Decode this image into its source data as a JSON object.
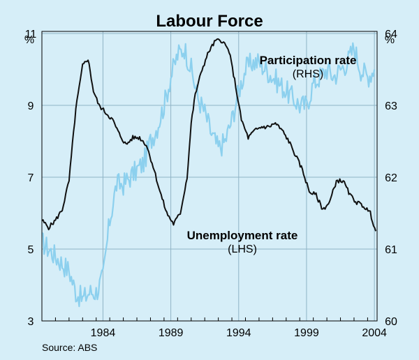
{
  "chart_data": {
    "type": "line",
    "title": "Labour Force",
    "left_axis": {
      "unit": "%",
      "ylim": [
        3,
        11
      ],
      "ticks": [
        "3",
        "5",
        "7",
        "9",
        "11"
      ]
    },
    "right_axis": {
      "unit": "%",
      "ylim": [
        60,
        64
      ],
      "ticks": [
        "60",
        "61",
        "62",
        "63",
        "64"
      ]
    },
    "x_axis": {
      "xlim": [
        1980.0,
        2004.7
      ],
      "ticks": [
        "1984",
        "1989",
        "1994",
        "1999",
        "2004"
      ]
    },
    "grid": true,
    "source": "Source: ABS",
    "colors": {
      "background": "#d6eef8",
      "unemployment": "#111111",
      "participation": "#8cd0ee",
      "grid": "#8fb4c6"
    },
    "series": [
      {
        "name": "Unemployment rate",
        "label_sub": "(LHS)",
        "axis": "left",
        "x": [
          1980.0,
          1980.5,
          1981.0,
          1981.5,
          1982.0,
          1982.5,
          1983.0,
          1983.4,
          1983.8,
          1984.2,
          1984.7,
          1985.2,
          1985.7,
          1986.2,
          1986.7,
          1987.2,
          1987.7,
          1988.2,
          1988.7,
          1989.2,
          1989.7,
          1990.2,
          1990.7,
          1991.0,
          1991.3,
          1991.8,
          1992.3,
          1992.8,
          1993.3,
          1993.8,
          1994.2,
          1994.7,
          1995.2,
          1995.7,
          1996.2,
          1996.7,
          1997.2,
          1997.7,
          1998.2,
          1998.7,
          1999.2,
          1999.7,
          2000.2,
          2000.7,
          2001.2,
          2001.7,
          2002.2,
          2002.7,
          2003.2,
          2003.7,
          2004.2,
          2004.6
        ],
        "y": [
          5.8,
          5.6,
          5.8,
          6.1,
          6.9,
          8.9,
          10.1,
          10.3,
          9.4,
          9.0,
          8.8,
          8.6,
          8.2,
          7.9,
          8.1,
          8.1,
          7.9,
          7.3,
          6.6,
          6.0,
          5.7,
          6.0,
          7.0,
          8.5,
          9.3,
          10.0,
          10.5,
          10.8,
          10.8,
          10.5,
          9.7,
          8.6,
          8.1,
          8.3,
          8.4,
          8.4,
          8.5,
          8.3,
          8.0,
          7.6,
          7.2,
          6.6,
          6.5,
          6.1,
          6.3,
          6.9,
          6.9,
          6.5,
          6.3,
          6.2,
          6.0,
          5.5
        ]
      },
      {
        "name": "Participation rate",
        "label_sub": "(RHS)",
        "axis": "right",
        "x": [
          1980.0,
          1980.5,
          1981.0,
          1981.5,
          1982.0,
          1982.5,
          1983.0,
          1983.5,
          1984.0,
          1984.5,
          1985.0,
          1985.5,
          1986.0,
          1986.5,
          1987.0,
          1987.5,
          1988.0,
          1988.5,
          1989.0,
          1989.5,
          1990.0,
          1990.5,
          1991.0,
          1991.5,
          1992.0,
          1992.5,
          1993.0,
          1993.5,
          1994.0,
          1994.5,
          1995.0,
          1995.5,
          1996.0,
          1996.5,
          1997.0,
          1997.5,
          1998.0,
          1998.5,
          1999.0,
          1999.5,
          2000.0,
          2000.5,
          2001.0,
          2001.5,
          2002.0,
          2002.5,
          2003.0,
          2003.5,
          2004.0,
          2004.5
        ],
        "y": [
          61.1,
          61.0,
          60.9,
          60.8,
          60.7,
          60.4,
          60.3,
          60.4,
          60.4,
          60.6,
          61.4,
          61.9,
          61.9,
          62.0,
          62.1,
          62.2,
          62.5,
          62.7,
          63.0,
          63.4,
          63.7,
          63.8,
          63.5,
          63.1,
          62.9,
          62.6,
          62.4,
          62.5,
          62.8,
          63.2,
          63.5,
          63.6,
          63.6,
          63.5,
          63.4,
          63.3,
          63.2,
          63.1,
          63.0,
          63.0,
          63.3,
          63.4,
          63.5,
          63.4,
          63.5,
          63.6,
          63.8,
          63.5,
          63.4,
          63.5
        ]
      }
    ]
  }
}
